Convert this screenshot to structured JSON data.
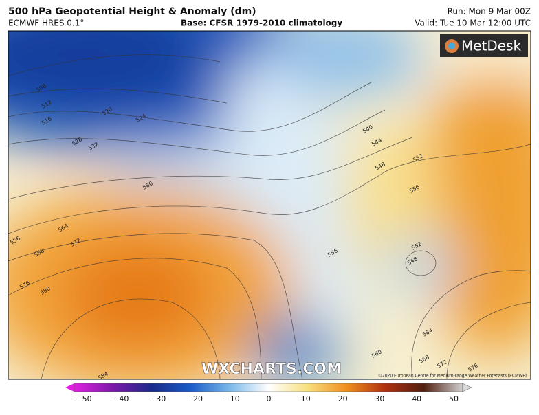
{
  "header": {
    "title": "500 hPa Geopotential Height & Anomaly (dm)",
    "model": "ECMWF HRES 0.1°",
    "base": "Base: CFSR 1979-2010 climatology",
    "run": "Run: Mon 9 Mar 00Z",
    "valid": "Valid: Tue 10 Mar 12:00 UTC"
  },
  "map": {
    "logo": "MetDesk",
    "watermark": "WXCHARTS.COM",
    "copyright": "©2020 European Centre for Medium-range Weather Forecasts (ECMWF)",
    "contour_labels": [
      "508",
      "512",
      "516",
      "520",
      "524",
      "528",
      "532",
      "560",
      "564",
      "568",
      "572",
      "556",
      "576",
      "580",
      "584",
      "540",
      "544",
      "548",
      "552",
      "556",
      "552",
      "548",
      "556",
      "560",
      "564",
      "568",
      "572",
      "576"
    ]
  },
  "colorbar": {
    "ticks": [
      "−50",
      "−40",
      "−30",
      "−20",
      "−10",
      "0",
      "10",
      "20",
      "30",
      "40",
      "50"
    ]
  }
}
